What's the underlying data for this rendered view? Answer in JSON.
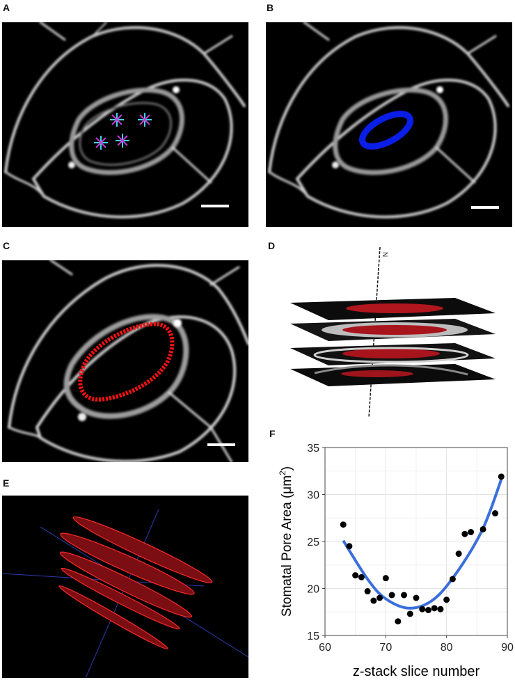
{
  "panels": {
    "a": {
      "letter": "A"
    },
    "b": {
      "letter": "B"
    },
    "c": {
      "letter": "C"
    },
    "d": {
      "letter": "D",
      "axis_label": "N"
    },
    "e": {
      "letter": "E"
    },
    "f": {
      "letter": "F"
    }
  },
  "colors": {
    "marker_cyan": "#41d3e8",
    "marker_magenta": "#c23bd6",
    "pore_blue": "#0a1ee8",
    "pore_red": "#ff1010",
    "slice_red": "#b3121a",
    "fit_line": "#3a6fdc",
    "points": "#000000"
  },
  "chart_data": {
    "type": "scatter",
    "xlabel": "z-stack slice number",
    "ylabel_main": "Stomatal Pore Area (",
    "ylabel_unit": "μm",
    "ylabel_sup": "2",
    "ylabel_close": ")",
    "xlim": [
      60,
      90
    ],
    "ylim": [
      15,
      35
    ],
    "xticks": [
      60,
      70,
      80,
      90
    ],
    "yticks": [
      15,
      20,
      25,
      30,
      35
    ],
    "grid": true,
    "points": [
      [
        63,
        26.8
      ],
      [
        64,
        24.5
      ],
      [
        65,
        21.4
      ],
      [
        66,
        21.2
      ],
      [
        67,
        19.7
      ],
      [
        68,
        18.7
      ],
      [
        69,
        19.0
      ],
      [
        70,
        21.1
      ],
      [
        71,
        19.3
      ],
      [
        72,
        16.5
      ],
      [
        73,
        19.3
      ],
      [
        74,
        17.3
      ],
      [
        75,
        19.0
      ],
      [
        76,
        17.8
      ],
      [
        77,
        17.7
      ],
      [
        78,
        17.9
      ],
      [
        79,
        17.8
      ],
      [
        80,
        18.8
      ],
      [
        81,
        21.0
      ],
      [
        82,
        23.7
      ],
      [
        83,
        25.8
      ],
      [
        84,
        26.0
      ],
      [
        86,
        26.3
      ],
      [
        88,
        28.0
      ],
      [
        89,
        31.9
      ]
    ],
    "fit": {
      "type": "quadratic",
      "x_range": [
        63,
        89
      ],
      "curve": [
        [
          63,
          25.1
        ],
        [
          67,
          21.0
        ],
        [
          70,
          18.9
        ],
        [
          74,
          17.9
        ],
        [
          78,
          18.9
        ],
        [
          82,
          22.0
        ],
        [
          86,
          26.4
        ],
        [
          89,
          31.6
        ]
      ]
    }
  }
}
